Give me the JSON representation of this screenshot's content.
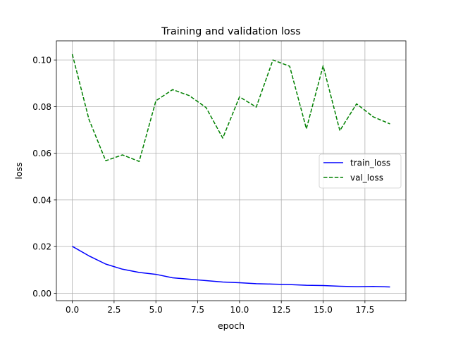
{
  "chart_data": {
    "type": "line",
    "title": "Training and validation loss",
    "xlabel": "epoch",
    "ylabel": "loss",
    "xlim": [
      -0.95,
      19.95
    ],
    "ylim": [
      -0.0032,
      0.1082
    ],
    "xticks": [
      0,
      2.5,
      5,
      7.5,
      10,
      12.5,
      15,
      17.5
    ],
    "xtick_labels": [
      "0.0",
      "2.5",
      "5.0",
      "7.5",
      "10.0",
      "12.5",
      "15.0",
      "17.5"
    ],
    "yticks": [
      0,
      0.02,
      0.04,
      0.06,
      0.08,
      0.1
    ],
    "ytick_labels": [
      "0.00",
      "0.02",
      "0.04",
      "0.06",
      "0.08",
      "0.10"
    ],
    "grid": true,
    "legend_position": "center-right",
    "x": [
      0,
      1,
      2,
      3,
      4,
      5,
      6,
      7,
      8,
      9,
      10,
      11,
      12,
      13,
      14,
      15,
      16,
      17,
      18,
      19
    ],
    "series": [
      {
        "name": "train_loss",
        "color": "#0000ff",
        "style": "solid",
        "values": [
          0.0201,
          0.016,
          0.0125,
          0.0103,
          0.0089,
          0.0081,
          0.0066,
          0.006,
          0.0054,
          0.0048,
          0.0045,
          0.0041,
          0.0039,
          0.0037,
          0.0034,
          0.0033,
          0.003,
          0.0028,
          0.0029,
          0.0027
        ]
      },
      {
        "name": "val_loss",
        "color": "#008000",
        "style": "dashed",
        "values": [
          0.1025,
          0.0745,
          0.0568,
          0.0593,
          0.0565,
          0.0825,
          0.0873,
          0.0847,
          0.0796,
          0.0665,
          0.0842,
          0.0798,
          0.1,
          0.0973,
          0.0705,
          0.0975,
          0.0697,
          0.0812,
          0.0756,
          0.0726
        ]
      }
    ]
  }
}
